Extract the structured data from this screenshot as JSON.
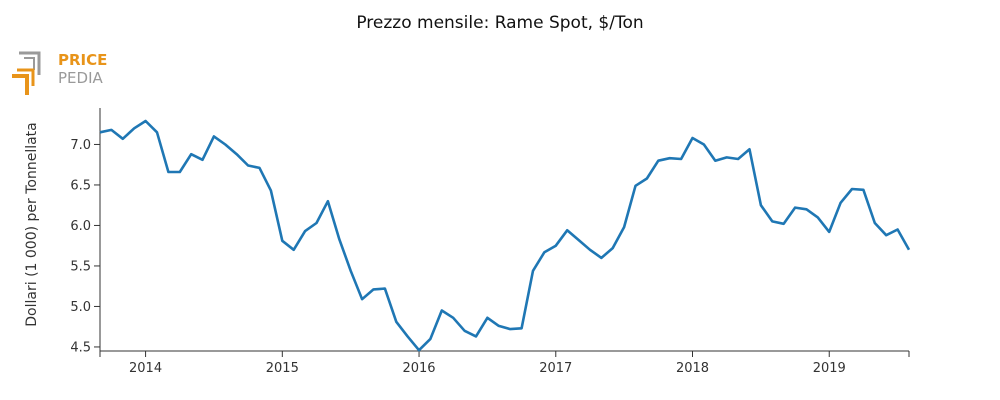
{
  "logo": {
    "line1": "PRICE",
    "line2": "PEDIA",
    "accent_color": "#e8941a",
    "muted_color": "#9a9a9a"
  },
  "chart_data": {
    "type": "line",
    "title": "Prezzo mensile: Rame Spot, $/Ton",
    "ylabel": "Dollari (1 000) per Tonnellata",
    "xlabel": "",
    "ylim": [
      4.45,
      7.45
    ],
    "yticks": [
      "4.5",
      "5.0",
      "5.5",
      "6.0",
      "6.5",
      "7.0"
    ],
    "xticks": [
      "2014",
      "2015",
      "2016",
      "2017",
      "2018",
      "2019"
    ],
    "x_start": "2013-09",
    "x_end": "2019-08",
    "series_color": "#1f77b4",
    "grid": false,
    "x": [
      "2013-09",
      "2013-10",
      "2013-11",
      "2013-12",
      "2014-01",
      "2014-02",
      "2014-03",
      "2014-04",
      "2014-05",
      "2014-06",
      "2014-07",
      "2014-08",
      "2014-09",
      "2014-10",
      "2014-11",
      "2014-12",
      "2015-01",
      "2015-02",
      "2015-03",
      "2015-04",
      "2015-05",
      "2015-06",
      "2015-07",
      "2015-08",
      "2015-09",
      "2015-10",
      "2015-11",
      "2015-12",
      "2016-01",
      "2016-02",
      "2016-03",
      "2016-04",
      "2016-05",
      "2016-06",
      "2016-07",
      "2016-08",
      "2016-09",
      "2016-10",
      "2016-11",
      "2016-12",
      "2017-01",
      "2017-02",
      "2017-03",
      "2017-04",
      "2017-05",
      "2017-06",
      "2017-07",
      "2017-08",
      "2017-09",
      "2017-10",
      "2017-11",
      "2017-12",
      "2018-01",
      "2018-02",
      "2018-03",
      "2018-04",
      "2018-05",
      "2018-06",
      "2018-07",
      "2018-08",
      "2018-09",
      "2018-10",
      "2018-11",
      "2018-12",
      "2019-01",
      "2019-02",
      "2019-03",
      "2019-04",
      "2019-05",
      "2019-06",
      "2019-07",
      "2019-08"
    ],
    "values": [
      7.15,
      7.18,
      7.07,
      7.2,
      7.29,
      7.15,
      6.66,
      6.66,
      6.88,
      6.81,
      7.1,
      7.0,
      6.88,
      6.74,
      6.71,
      6.43,
      5.81,
      5.7,
      5.93,
      6.03,
      6.3,
      5.83,
      5.44,
      5.09,
      5.21,
      5.22,
      4.81,
      4.63,
      4.46,
      4.6,
      4.95,
      4.86,
      4.7,
      4.63,
      4.86,
      4.76,
      4.72,
      4.73,
      5.44,
      5.67,
      5.75,
      5.94,
      5.82,
      5.7,
      5.6,
      5.72,
      5.98,
      6.49,
      6.58,
      6.8,
      6.83,
      6.82,
      7.08,
      7.0,
      6.8,
      6.84,
      6.82,
      6.94,
      6.25,
      6.05,
      6.02,
      6.22,
      6.2,
      6.1,
      5.92,
      6.28,
      6.45,
      6.44,
      6.03,
      5.88,
      5.95,
      5.7
    ]
  }
}
